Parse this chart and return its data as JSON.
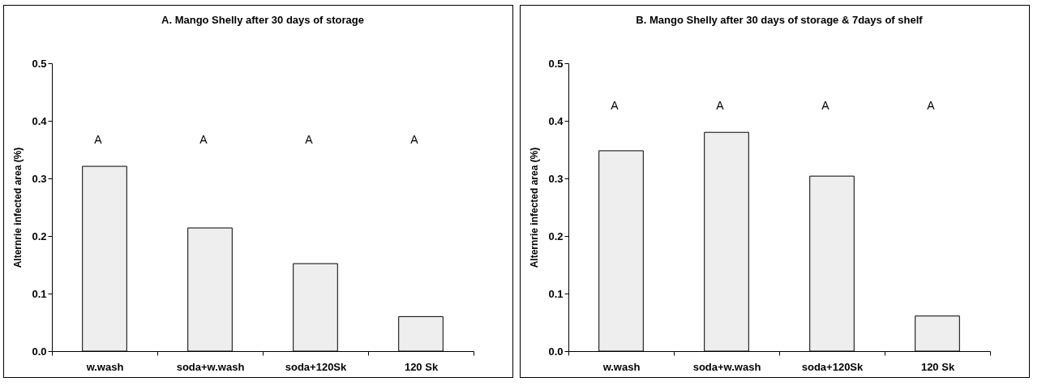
{
  "chart_data": [
    {
      "type": "bar",
      "title": "A. Mango Shelly after 30 days of storage",
      "ylabel": "Alternrie infected area (%)",
      "categories": [
        "w.wash",
        "soda+w.wash",
        "soda+120Sk",
        "120 Sk"
      ],
      "values": [
        0.321,
        0.214,
        0.152,
        0.06
      ],
      "color": "#eeeeee",
      "ylim": [
        0,
        0.5
      ],
      "yticks": [
        {
          "value": 0,
          "label": "0.0"
        },
        0.1,
        0.2,
        0.3,
        0.4,
        0.5
      ],
      "grid": false,
      "annotations": [
        "A",
        "A",
        "A",
        "A"
      ]
    },
    {
      "type": "bar",
      "title": "B. Mango Shelly after 30 days of storage & 7days of shelf",
      "ylabel": "Alternrie infected area (%)",
      "categories": [
        "w.wash",
        "soda+w.wash",
        "soda+120Sk",
        "120 Sk"
      ],
      "values": [
        0.348,
        0.38,
        0.304,
        0.061
      ],
      "color": "#eeeeee",
      "ylim": [
        0,
        0.5
      ],
      "yticks": [
        {
          "value": 0,
          "label": "0.0"
        },
        0.1,
        0.2,
        0.3,
        0.4,
        0.5
      ],
      "grid": false,
      "annotations": [
        "A",
        "A",
        "A",
        "A"
      ]
    }
  ]
}
